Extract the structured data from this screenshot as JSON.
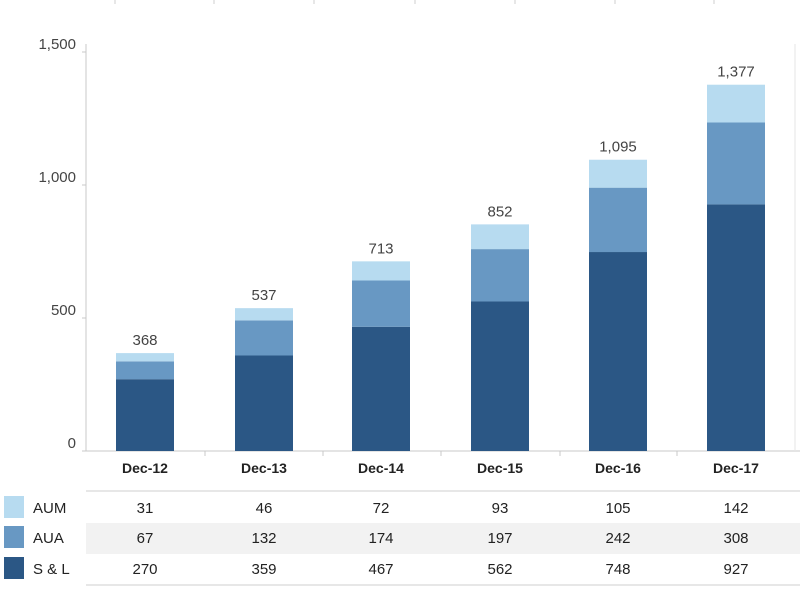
{
  "chart_data": {
    "type": "bar",
    "stacked": true,
    "categories": [
      "Dec-12",
      "Dec-13",
      "Dec-14",
      "Dec-15",
      "Dec-16",
      "Dec-17"
    ],
    "series": [
      {
        "name": "S & L",
        "color": "#2b5785",
        "values": [
          270,
          359,
          467,
          562,
          748,
          927
        ]
      },
      {
        "name": "AUA",
        "color": "#6898c3",
        "values": [
          67,
          132,
          174,
          197,
          242,
          308
        ]
      },
      {
        "name": "AUM",
        "color": "#b7dbf0",
        "values": [
          31,
          46,
          72,
          93,
          105,
          142
        ]
      }
    ],
    "totals": [
      "368",
      "537",
      "713",
      "852",
      "1,095",
      "1,377"
    ],
    "ylim": [
      0,
      1500
    ],
    "yticks": [
      0,
      500,
      1000,
      1500
    ],
    "ytick_labels": [
      "0",
      "500",
      "1,000",
      "1,500"
    ],
    "title": "",
    "xlabel": "",
    "ylabel": "",
    "legend": "data-table-below"
  },
  "table": {
    "rows": [
      {
        "label": "AUM",
        "series_index": 2,
        "cells": [
          "31",
          "46",
          "72",
          "93",
          "105",
          "142"
        ]
      },
      {
        "label": "AUA",
        "series_index": 1,
        "cells": [
          "67",
          "132",
          "174",
          "197",
          "242",
          "308"
        ]
      },
      {
        "label": "S & L",
        "series_index": 0,
        "cells": [
          "270",
          "359",
          "467",
          "562",
          "748",
          "927"
        ]
      }
    ]
  }
}
